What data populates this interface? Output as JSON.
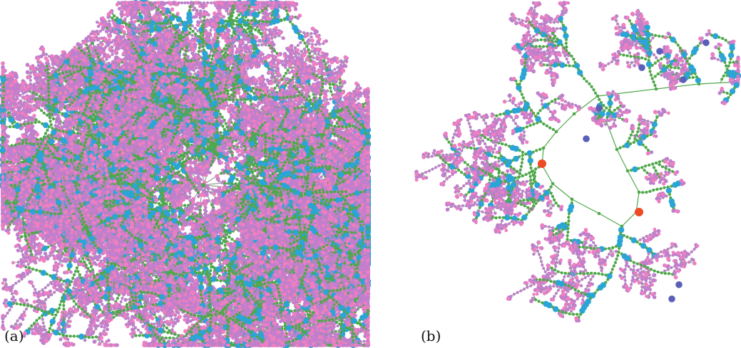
{
  "panels": [
    {
      "label": "(a)"
    },
    {
      "label": "(b)"
    }
  ],
  "colors": {
    "leaf": "#c07fcc",
    "tip": "#ee7fc0",
    "chain": "#4fa84a",
    "hub": "#2aa5d6",
    "core": "#5a5fb8",
    "root": "#ef4a25",
    "edge": "#7a8a7a"
  }
}
